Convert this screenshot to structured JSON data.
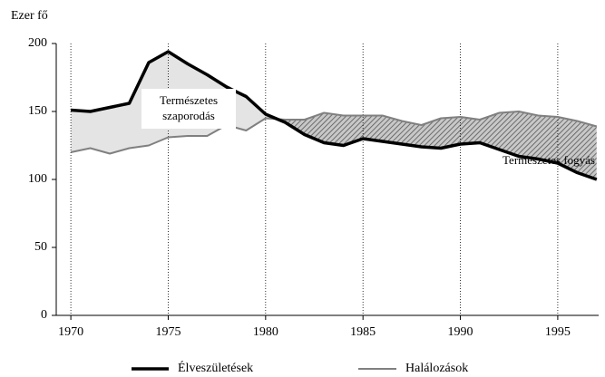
{
  "chart_data": {
    "type": "line",
    "y_label": "Ezer fő",
    "x": [
      1970,
      1971,
      1972,
      1973,
      1974,
      1975,
      1976,
      1977,
      1978,
      1979,
      1980,
      1981,
      1982,
      1983,
      1984,
      1985,
      1986,
      1987,
      1988,
      1989,
      1990,
      1991,
      1992,
      1993,
      1994,
      1995,
      1996,
      1997
    ],
    "series": [
      {
        "name": "Élveszületések",
        "color": "#000000",
        "values": [
          151,
          150,
          153,
          156,
          186,
          194,
          185,
          177,
          168,
          161,
          148,
          142,
          133,
          127,
          125,
          130,
          128,
          126,
          124,
          123,
          126,
          127,
          122,
          117,
          115,
          112,
          105,
          100
        ]
      },
      {
        "name": "Halálozások",
        "color": "#808080",
        "values": [
          120,
          123,
          119,
          123,
          125,
          131,
          132,
          132,
          140,
          136,
          145,
          144,
          144,
          149,
          147,
          147,
          147,
          143,
          140,
          145,
          146,
          144,
          149,
          150,
          147,
          146,
          143,
          139
        ]
      }
    ],
    "xlim": [
      1969.25,
      1997.1
    ],
    "xticks": [
      1970,
      1975,
      1980,
      1985,
      1990,
      1995
    ],
    "ylim": [
      0,
      200
    ],
    "yticks": [
      0,
      50,
      100,
      150,
      200
    ],
    "grid": true,
    "annotations": [
      {
        "lines": [
          "Természetes",
          "szaporodás"
        ]
      },
      {
        "lines": [
          "Természetes fogyás"
        ]
      }
    ]
  }
}
